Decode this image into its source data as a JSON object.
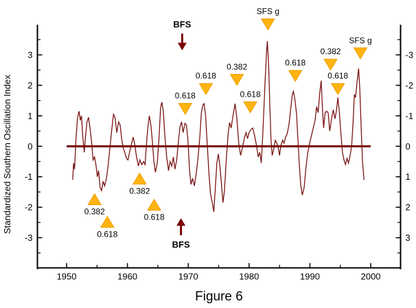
{
  "chart_data": {
    "type": "line",
    "title": "",
    "caption": "Figure 6",
    "ylabel": "Standardized Southern Oscillation Index",
    "x_range": [
      1945.2,
      2004.9
    ],
    "y_range": [
      -3.99,
      3.99
    ],
    "grid": false,
    "legend": "none",
    "x_axis": {
      "major_ticks": [
        1950,
        1960,
        1970,
        1980,
        1990,
        2000
      ],
      "minor_ticks": [
        1955,
        1965,
        1975,
        1985,
        1995
      ]
    },
    "y_axis_left": {
      "major_ticks": [
        3,
        2,
        1,
        0,
        -1,
        -2,
        -3
      ],
      "minor_ticks": [
        3.5,
        2.5,
        1.5,
        0.5,
        -0.5,
        -1.5,
        -2.5,
        -3.5
      ]
    },
    "y_axis_right": {
      "tick_values": [
        3,
        2,
        1,
        0,
        -1,
        -2,
        -3
      ],
      "tick_labels": [
        "-3",
        "-2",
        "-1",
        "0",
        "1",
        "2",
        "3"
      ],
      "minor_ticks": [
        3.5,
        2.5,
        1.5,
        0.5,
        -0.5,
        -1.5,
        -2.5,
        -3.5
      ]
    },
    "zero_line": {
      "value": 0,
      "from_year": 1950,
      "to_year": 2000
    },
    "series": [
      {
        "name": "Standardized Southern Oscillation Index",
        "points": [
          [
            1951.0,
            -1.1
          ],
          [
            1951.15,
            -0.55
          ],
          [
            1951.3,
            -0.75
          ],
          [
            1951.55,
            0.3
          ],
          [
            1951.8,
            0.95
          ],
          [
            1952.05,
            1.15
          ],
          [
            1952.25,
            0.85
          ],
          [
            1952.45,
            1.0
          ],
          [
            1952.65,
            0.35
          ],
          [
            1952.9,
            -0.2
          ],
          [
            1953.1,
            0.3
          ],
          [
            1953.35,
            0.8
          ],
          [
            1953.6,
            0.95
          ],
          [
            1953.85,
            0.6
          ],
          [
            1954.1,
            0.15
          ],
          [
            1954.35,
            -0.45
          ],
          [
            1954.6,
            -0.35
          ],
          [
            1954.85,
            -0.65
          ],
          [
            1955.05,
            -1.0
          ],
          [
            1955.25,
            -0.8
          ],
          [
            1955.5,
            -1.35
          ],
          [
            1955.75,
            -1.45
          ],
          [
            1956.0,
            -1.15
          ],
          [
            1956.25,
            -1.3
          ],
          [
            1956.55,
            -1.05
          ],
          [
            1956.85,
            -0.6
          ],
          [
            1957.1,
            -0.1
          ],
          [
            1957.4,
            0.5
          ],
          [
            1957.7,
            1.05
          ],
          [
            1957.95,
            0.95
          ],
          [
            1958.25,
            0.45
          ],
          [
            1958.55,
            0.8
          ],
          [
            1958.8,
            0.7
          ],
          [
            1959.05,
            0.25
          ],
          [
            1959.3,
            -0.05
          ],
          [
            1959.55,
            -0.2
          ],
          [
            1959.85,
            -0.4
          ],
          [
            1960.1,
            -0.45
          ],
          [
            1960.4,
            -0.15
          ],
          [
            1960.7,
            0.1
          ],
          [
            1960.95,
            0.3
          ],
          [
            1961.2,
            0.05
          ],
          [
            1961.5,
            -0.35
          ],
          [
            1961.8,
            -0.65
          ],
          [
            1962.05,
            -0.45
          ],
          [
            1962.35,
            -0.6
          ],
          [
            1962.65,
            -0.5
          ],
          [
            1962.9,
            -0.6
          ],
          [
            1963.1,
            0.0
          ],
          [
            1963.35,
            0.6
          ],
          [
            1963.6,
            1.0
          ],
          [
            1963.85,
            0.7
          ],
          [
            1964.1,
            0.15
          ],
          [
            1964.35,
            -0.5
          ],
          [
            1964.6,
            -0.85
          ],
          [
            1964.9,
            -0.55
          ],
          [
            1965.2,
            0.3
          ],
          [
            1965.45,
            1.25
          ],
          [
            1965.65,
            1.45
          ],
          [
            1965.9,
            1.15
          ],
          [
            1966.15,
            0.35
          ],
          [
            1966.45,
            -0.35
          ],
          [
            1966.75,
            -0.8
          ],
          [
            1967.0,
            -0.5
          ],
          [
            1967.3,
            -0.65
          ],
          [
            1967.55,
            -0.35
          ],
          [
            1967.8,
            -0.75
          ],
          [
            1968.1,
            -0.45
          ],
          [
            1968.4,
            0.2
          ],
          [
            1968.65,
            0.65
          ],
          [
            1968.9,
            0.8
          ],
          [
            1969.15,
            0.45
          ],
          [
            1969.45,
            0.75
          ],
          [
            1969.7,
            0.7
          ],
          [
            1969.95,
            0.2
          ],
          [
            1970.2,
            -0.75
          ],
          [
            1970.45,
            -1.25
          ],
          [
            1970.7,
            -1.05
          ],
          [
            1971.0,
            -1.3
          ],
          [
            1971.3,
            -0.9
          ],
          [
            1971.6,
            -0.4
          ],
          [
            1971.9,
            0.3
          ],
          [
            1972.15,
            1.1
          ],
          [
            1972.4,
            1.35
          ],
          [
            1972.6,
            1.4
          ],
          [
            1972.85,
            1.0
          ],
          [
            1973.1,
            0.15
          ],
          [
            1973.4,
            -0.9
          ],
          [
            1973.65,
            -1.55
          ],
          [
            1973.9,
            -1.8
          ],
          [
            1974.2,
            -2.15
          ],
          [
            1974.45,
            -1.35
          ],
          [
            1974.7,
            -0.55
          ],
          [
            1974.95,
            -0.25
          ],
          [
            1975.2,
            -0.65
          ],
          [
            1975.45,
            -1.2
          ],
          [
            1975.7,
            -1.85
          ],
          [
            1975.95,
            -1.45
          ],
          [
            1976.25,
            -0.45
          ],
          [
            1976.55,
            0.4
          ],
          [
            1976.8,
            0.78
          ],
          [
            1977.05,
            0.6
          ],
          [
            1977.35,
            1.0
          ],
          [
            1977.7,
            1.4
          ],
          [
            1978.0,
            0.9
          ],
          [
            1978.3,
            0.1
          ],
          [
            1978.6,
            -0.3
          ],
          [
            1978.9,
            -0.05
          ],
          [
            1979.2,
            0.25
          ],
          [
            1979.5,
            0.45
          ],
          [
            1979.75,
            0.25
          ],
          [
            1980.0,
            0.45
          ],
          [
            1980.3,
            0.55
          ],
          [
            1980.6,
            0.6
          ],
          [
            1980.9,
            0.35
          ],
          [
            1981.2,
            0.05
          ],
          [
            1981.5,
            -0.35
          ],
          [
            1981.75,
            -0.2
          ],
          [
            1982.0,
            -0.55
          ],
          [
            1982.2,
            0.2
          ],
          [
            1982.45,
            1.3
          ],
          [
            1982.65,
            2.2
          ],
          [
            1982.85,
            3.0
          ],
          [
            1983.0,
            3.45
          ],
          [
            1983.2,
            2.75
          ],
          [
            1983.4,
            1.4
          ],
          [
            1983.6,
            0.2
          ],
          [
            1983.8,
            -0.3
          ],
          [
            1984.05,
            -0.1
          ],
          [
            1984.3,
            0.2
          ],
          [
            1984.55,
            0.1
          ],
          [
            1984.8,
            -0.05
          ],
          [
            1985.0,
            -0.3
          ],
          [
            1985.25,
            0.05
          ],
          [
            1985.5,
            0.2
          ],
          [
            1985.75,
            0.1
          ],
          [
            1986.0,
            0.3
          ],
          [
            1986.25,
            0.4
          ],
          [
            1986.55,
            0.7
          ],
          [
            1986.85,
            1.25
          ],
          [
            1987.1,
            1.7
          ],
          [
            1987.3,
            1.8
          ],
          [
            1987.55,
            1.5
          ],
          [
            1987.8,
            1.05
          ],
          [
            1988.0,
            0.35
          ],
          [
            1988.25,
            -0.6
          ],
          [
            1988.5,
            -1.3
          ],
          [
            1988.75,
            -1.6
          ],
          [
            1989.05,
            -1.35
          ],
          [
            1989.35,
            -0.7
          ],
          [
            1989.65,
            -0.2
          ],
          [
            1989.95,
            0.1
          ],
          [
            1990.25,
            0.35
          ],
          [
            1990.55,
            0.6
          ],
          [
            1990.85,
            0.85
          ],
          [
            1991.1,
            1.3
          ],
          [
            1991.35,
            1.1
          ],
          [
            1991.6,
            1.7
          ],
          [
            1991.85,
            2.15
          ],
          [
            1992.05,
            1.3
          ],
          [
            1992.25,
            0.6
          ],
          [
            1992.5,
            1.1
          ],
          [
            1992.75,
            1.15
          ],
          [
            1993.0,
            1.1
          ],
          [
            1993.25,
            0.5
          ],
          [
            1993.55,
            0.9
          ],
          [
            1993.85,
            1.2
          ],
          [
            1994.1,
            0.9
          ],
          [
            1994.35,
            1.15
          ],
          [
            1994.6,
            1.6
          ],
          [
            1994.85,
            1.1
          ],
          [
            1995.1,
            0.4
          ],
          [
            1995.35,
            -0.2
          ],
          [
            1995.6,
            -0.45
          ],
          [
            1995.85,
            -0.6
          ],
          [
            1996.1,
            -0.4
          ],
          [
            1996.35,
            -0.55
          ],
          [
            1996.6,
            -0.3
          ],
          [
            1996.85,
            0.0
          ],
          [
            1997.1,
            0.8
          ],
          [
            1997.3,
            1.7
          ],
          [
            1997.5,
            1.6
          ],
          [
            1997.75,
            2.1
          ],
          [
            1998.0,
            2.55
          ],
          [
            1998.2,
            1.9
          ],
          [
            1998.45,
            0.5
          ],
          [
            1998.65,
            -0.5
          ],
          [
            1998.9,
            -1.1
          ]
        ]
      }
    ],
    "annotations": {
      "down_triangles": [
        {
          "label": "0.618",
          "year": 1969.5,
          "tip_value": 1.05
        },
        {
          "label": "0.618",
          "year": 1972.9,
          "tip_value": 1.7
        },
        {
          "label": "0.382",
          "year": 1978.0,
          "tip_value": 2.0
        },
        {
          "label": "0.618",
          "year": 1980.2,
          "tip_value": 1.1
        },
        {
          "label": "SFS g",
          "year": 1983.1,
          "tip_value": 3.82
        },
        {
          "label": "0.618",
          "year": 1987.6,
          "tip_value": 2.13
        },
        {
          "label": "0.382",
          "year": 1993.4,
          "tip_value": 2.5
        },
        {
          "label": "0.618",
          "year": 1994.6,
          "tip_value": 1.7
        },
        {
          "label": "SFS g",
          "year": 1998.3,
          "tip_value": 2.87
        }
      ],
      "up_triangles": [
        {
          "label": "0.382",
          "year": 1954.6,
          "tip_value": -1.56
        },
        {
          "label": "0.618",
          "year": 1956.7,
          "tip_value": -2.3
        },
        {
          "label": "0.382",
          "year": 1962.0,
          "tip_value": -0.88
        },
        {
          "label": "0.618",
          "year": 1964.4,
          "tip_value": -1.74
        }
      ],
      "bfs_arrows": [
        {
          "label": "BFS",
          "year": 1969.0,
          "direction": "down",
          "tip_value": 3.15,
          "tail_value": 3.7
        },
        {
          "label": "BFS",
          "year": 1968.8,
          "direction": "up",
          "tip_value": -2.36,
          "tail_value": -2.92
        }
      ]
    },
    "colors": {
      "series": "#7a1414",
      "zero_line": "#730303",
      "arrow": "#7a0202",
      "triangle_fill": "#ffb410",
      "triangle_edge": "#f09c00",
      "axis": "#000000",
      "text": "#000000",
      "background": "#ffffff"
    }
  }
}
